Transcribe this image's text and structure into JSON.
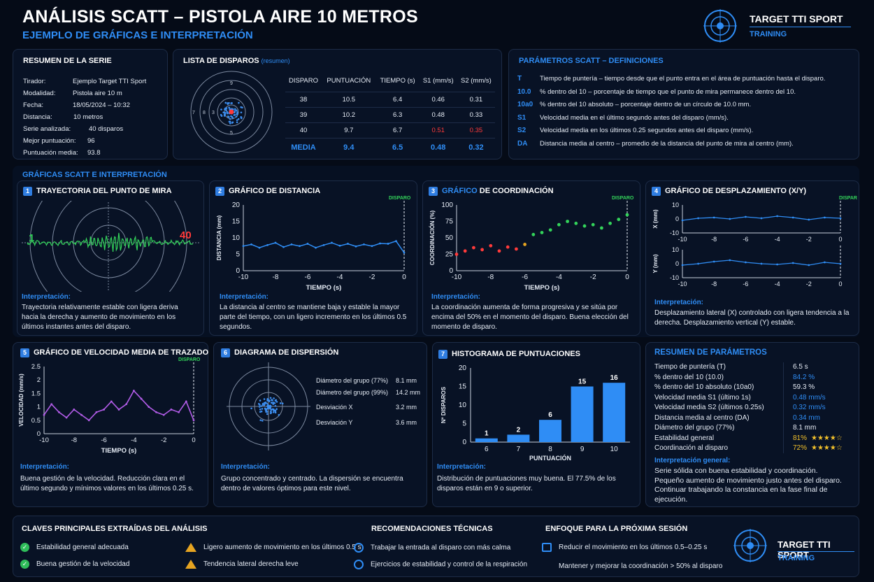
{
  "header": {
    "title": "ANÁLISIS SCATT – PISTOLA AIRE 10 METROS",
    "subtitle": "EJEMPLO DE GRÁFICAS E INTERPRETACIÓN",
    "brand": "TARGET TTI SPORT",
    "brand_sub": "TRAINING",
    "logo_text": "TARGET TTI SPORT TRAINING"
  },
  "summary": {
    "title": "RESUMEN DE LA SERIE",
    "rows": [
      {
        "label": "Tirador:",
        "value": "Ejemplo Target TTI Sport"
      },
      {
        "label": "Modalidad:",
        "value": "Pistola aire 10 m"
      },
      {
        "label": "Fecha:",
        "value": "18/05/2024 – 10:32"
      },
      {
        "label": "Distancia:",
        "value": "10 metros"
      },
      {
        "label": "Serie analizada:",
        "value": "40 disparos"
      },
      {
        "label": "Mejor puntuación:",
        "value": "96"
      },
      {
        "label": "Puntuación media:",
        "value": "93.8"
      }
    ]
  },
  "shots": {
    "title": "LISTA DE DISPAROS",
    "title_sub": "(resumen)",
    "headers": [
      "DISPARO",
      "PUNTUACIÓN",
      "TIEMPO (s)",
      "S1 (mm/s)",
      "S2 (mm/s)"
    ],
    "rows": [
      [
        "38",
        "10.5",
        "6.4",
        "0.46",
        "0.31"
      ],
      [
        "39",
        "10.2",
        "6.3",
        "0.48",
        "0.33"
      ],
      [
        "40",
        "9.7",
        "6.7",
        "0.51",
        "0.35"
      ]
    ],
    "media": [
      "MEDIA",
      "9.4",
      "6.5",
      "0.48",
      "0.32"
    ],
    "target_rings": [
      "7",
      "8",
      "3",
      "9",
      "5"
    ]
  },
  "params": {
    "title": "PARÁMETROS SCATT – DEFINICIONES",
    "rows": [
      {
        "key": "T",
        "desc": "Tiempo de puntería – tiempo desde que el punto entra en el área de puntuación hasta el disparo."
      },
      {
        "key": "10.0",
        "desc": "% dentro del 10 – porcentaje de tiempo que el punto de mira permanece dentro del 10."
      },
      {
        "key": "10a0",
        "desc": "% dentro del 10 absoluto – porcentaje dentro de un círculo de 10.0 mm."
      },
      {
        "key": "S1",
        "desc": "Velocidad media en el último segundo antes del disparo (mm/s)."
      },
      {
        "key": "S2",
        "desc": "Velocidad media en los últimos 0.25 segundos antes del disparo (mm/s)."
      },
      {
        "key": "DA",
        "desc": "Distancia media al centro – promedio de la distancia del punto de mira al centro (mm)."
      }
    ]
  },
  "section_title": "GRÁFICAS SCATT E INTERPRETACIÓN",
  "interp_label": "Interpretación:",
  "disparo": "DISPARO",
  "p1": {
    "num": "1",
    "title": "TRAYECTORIA DEL PUNTO DE MIRA",
    "start": "1",
    "end": "40",
    "interp": "Trayectoria relativamente estable con ligera deriva hacia la derecha y aumento de movimiento en los últimos instantes antes del disparo."
  },
  "p2": {
    "num": "2",
    "title": "GRÁFICO DE DISTANCIA",
    "ylabel": "DISTANCIA (mm)",
    "xlabel": "TIEMPO (s)",
    "interp": "La distancia al centro se mantiene baja y estable la mayor parte del tiempo, con un ligero incremento en los últimos 0.5 segundos."
  },
  "p3": {
    "num": "3",
    "title_a": "GRÁFICO",
    "title_b": "DE COORDINACIÓN",
    "ylabel": "COORDINACIÓN (%)",
    "xlabel": "TIEMPO (s)",
    "interp": "La coordinación aumenta de forma progresiva y se sitúa por encima del 50% en el momento del disparo. Buena elección del momento de disparo."
  },
  "p4": {
    "num": "4",
    "title": "GRÁFICO DE DESPLAZAMIENTO (X/Y)",
    "ylabel_x": "X (mm)",
    "ylabel_y": "Y (mm)",
    "interp": "Desplazamiento lateral (X) controlado con ligera tendencia a la derecha. Desplazamiento vertical (Y) estable."
  },
  "p5": {
    "num": "5",
    "title_a": "GRÁFICO",
    "title_b": "DE VELOCIDAD MEDIA DE TRAZADO",
    "ylabel": "VELOCIDAD (mm/s)",
    "xlabel": "TIEMPO (s)",
    "interp": "Buena gestión de la velocidad. Reducción clara en el último segundo y mínimos valores en los últimos 0.25 s."
  },
  "p6": {
    "num": "6",
    "title": "DIAGRAMA DE DISPERSIÓN",
    "stats": [
      {
        "label": "Diámetro del grupo (77%)",
        "value": "8.1 mm"
      },
      {
        "label": "Diámetro del grupo (99%)",
        "value": "14.2 mm"
      },
      {
        "label": "Desviación X",
        "value": "3.2 mm"
      },
      {
        "label": "Desviación Y",
        "value": "3.6 mm"
      }
    ],
    "interp": "Grupo concentrado y centrado. La dispersión se encuentra dentro de valores óptimos para este nivel."
  },
  "p7": {
    "num": "7",
    "title": "HISTOGRAMA DE PUNTUACIONES",
    "ylabel": "Nº DISPAROS",
    "xlabel": "PUNTUACIÓN",
    "interp": "Distribución de puntuaciones muy buena. El 77.5% de los disparos están en 9 o superior."
  },
  "resumen": {
    "title": "RESUMEN DE PARÁMETROS",
    "rows": [
      {
        "label": "Tiempo de puntería (T)",
        "value": "6.5 s",
        "color": "#e6ecf5"
      },
      {
        "label": "% dentro del 10 (10.0)",
        "value": "84.2 %",
        "color": "#2f8df5"
      },
      {
        "label": "% dentro del 10 absoluto (10a0)",
        "value": "59.3 %",
        "color": "#e6ecf5"
      },
      {
        "label": "Velocidad media S1 (último 1s)",
        "value": "0.48 mm/s",
        "color": "#2f8df5"
      },
      {
        "label": "Velocidad media S2 (últimos 0.25s)",
        "value": "0.32 mm/s",
        "color": "#2f8df5"
      },
      {
        "label": "Distancia media al centro (DA)",
        "value": "0.34 mm",
        "color": "#2f8df5"
      },
      {
        "label": "Diámetro del grupo (77%)",
        "value": "8.1 mm",
        "color": "#e6ecf5"
      },
      {
        "label": "Estabilidad general",
        "value": "81%",
        "color": "#f3c12b",
        "stars": "★★★★☆"
      },
      {
        "label": "Coordinación al disparo",
        "value": "72%",
        "color": "#f3c12b",
        "stars": "★★★★☆"
      }
    ],
    "general_title": "Interpretación general:",
    "general": "Serie sólida con buena estabilidad y coordinación. Pequeño aumento de movimiento justo antes del disparo. Continuar trabajando la constancia en la fase final de ejecución."
  },
  "claves": {
    "title": "CLAVES PRINCIPALES EXTRAÍDAS DEL ANÁLISIS",
    "ok": [
      "Estabilidad general adecuada",
      "Buena gestión de la velocidad"
    ],
    "warn": [
      "Ligero aumento de movimiento en los últimos 0.5 s",
      "Tendencia lateral derecha leve"
    ]
  },
  "recom": {
    "title": "RECOMENDACIONES TÉCNICAS",
    "items": [
      "Trabajar la entrada al disparo con más calma",
      "Ejercicios de estabilidad y control de la respiración"
    ]
  },
  "enfoque": {
    "title": "ENFOQUE PARA LA PRÓXIMA SESIÓN",
    "items": [
      "Reducir el movimiento en los últimos 0.5–0.25 s",
      "Mantener y mejorar la coordinación > 50% al disparo"
    ]
  },
  "colors": {
    "accent": "#2f8df5",
    "bg": "#050b17",
    "panel": "#081225",
    "green": "#33d35a",
    "purple": "#b25ce8",
    "red": "#ff3a3a",
    "gold": "#f3c12b"
  },
  "chart_data": [
    {
      "type": "line",
      "title": "GRÁFICO DE DISTANCIA",
      "xlabel": "TIEMPO (s)",
      "ylabel": "DISTANCIA (mm)",
      "xlim": [
        -10,
        0
      ],
      "ylim": [
        0,
        20
      ],
      "xticks": [
        -10,
        -8,
        -6,
        -4,
        -2,
        0
      ],
      "yticks": [
        0,
        5,
        10,
        15,
        20
      ],
      "x": [
        -10,
        -9.5,
        -9,
        -8.5,
        -8,
        -7.5,
        -7,
        -6.5,
        -6,
        -5.5,
        -5,
        -4.5,
        -4,
        -3.5,
        -3,
        -2.5,
        -2,
        -1.5,
        -1,
        -0.5,
        0
      ],
      "y": [
        7.5,
        8,
        7,
        7.8,
        8.5,
        7.2,
        8,
        7.5,
        8.2,
        7,
        7.8,
        8.5,
        7.6,
        8.2,
        7.4,
        8,
        7.5,
        8.3,
        8.2,
        9,
        5.5
      ]
    },
    {
      "type": "scatter",
      "title": "GRÁFICO DE COORDINACIÓN",
      "xlabel": "TIEMPO (s)",
      "ylabel": "COORDINACIÓN (%)",
      "xlim": [
        -10,
        0
      ],
      "ylim": [
        0,
        100
      ],
      "xticks": [
        -10,
        -8,
        -6,
        -4,
        -2,
        0
      ],
      "yticks": [
        0,
        25,
        50,
        75,
        100
      ],
      "x": [
        -10,
        -9.5,
        -9,
        -8.5,
        -8,
        -7.5,
        -7,
        -6.5,
        -6,
        -5.5,
        -5,
        -4.5,
        -4,
        -3.5,
        -3,
        -2.5,
        -2,
        -1.5,
        -1,
        -0.5,
        0
      ],
      "y": [
        25,
        30,
        35,
        32,
        38,
        30,
        36,
        33,
        40,
        55,
        58,
        62,
        70,
        75,
        72,
        68,
        70,
        65,
        72,
        78,
        85
      ]
    },
    {
      "type": "line",
      "title": "GRÁFICO DE DESPLAZAMIENTO (X)",
      "ylabel": "X (mm)",
      "xlim": [
        -10,
        0
      ],
      "ylim": [
        -10,
        10
      ],
      "xticks": [
        -10,
        -8,
        -6,
        -4,
        -2,
        0
      ],
      "yticks": [
        -10,
        0,
        10
      ],
      "x": [
        -10,
        -9,
        -8,
        -7,
        -6,
        -5,
        -4,
        -3,
        -2,
        -1,
        0
      ],
      "y": [
        -1,
        0.5,
        1,
        0,
        1.5,
        0.5,
        2,
        1,
        -0.5,
        1,
        0.5
      ]
    },
    {
      "type": "line",
      "title": "GRÁFICO DE DESPLAZAMIENTO (Y)",
      "ylabel": "Y (mm)",
      "xlim": [
        -10,
        0
      ],
      "ylim": [
        -10,
        10
      ],
      "xticks": [
        -10,
        -8,
        -6,
        -4,
        -2,
        0
      ],
      "yticks": [
        -10,
        0,
        10
      ],
      "x": [
        -10,
        -9,
        -8,
        -7,
        -6,
        -5,
        -4,
        -3,
        -2,
        -1,
        0
      ],
      "y": [
        -1,
        0,
        1.5,
        2.5,
        1,
        0,
        -0.5,
        0.5,
        -1,
        1,
        0
      ]
    },
    {
      "type": "line",
      "title": "GRÁFICO DE VELOCIDAD MEDIA DE TRAZADO",
      "xlabel": "TIEMPO (s)",
      "ylabel": "VELOCIDAD (mm/s)",
      "xlim": [
        -10,
        0
      ],
      "ylim": [
        0,
        2.5
      ],
      "xticks": [
        -10,
        -8,
        -6,
        -4,
        -2,
        0
      ],
      "yticks": [
        0,
        0.5,
        1,
        1.5,
        2,
        2.5
      ],
      "x": [
        -10,
        -9.5,
        -9,
        -8.5,
        -8,
        -7.5,
        -7,
        -6.5,
        -6,
        -5.5,
        -5,
        -4.5,
        -4,
        -3.5,
        -3,
        -2.5,
        -2,
        -1.5,
        -1,
        -0.5,
        0
      ],
      "y": [
        0.7,
        1.1,
        0.8,
        0.6,
        0.9,
        0.7,
        0.5,
        0.8,
        0.9,
        1.2,
        0.9,
        1.1,
        1.6,
        1.3,
        1,
        0.8,
        0.7,
        0.9,
        0.8,
        1.2,
        0.5
      ]
    },
    {
      "type": "bar",
      "title": "HISTOGRAMA DE PUNTUACIONES",
      "xlabel": "PUNTUACIÓN",
      "ylabel": "Nº DISPAROS",
      "categories": [
        "6",
        "7",
        "8",
        "9",
        "10"
      ],
      "values": [
        1,
        2,
        6,
        15,
        16
      ],
      "ylim": [
        0,
        20
      ],
      "yticks": [
        0,
        5,
        10,
        15,
        20
      ]
    }
  ]
}
